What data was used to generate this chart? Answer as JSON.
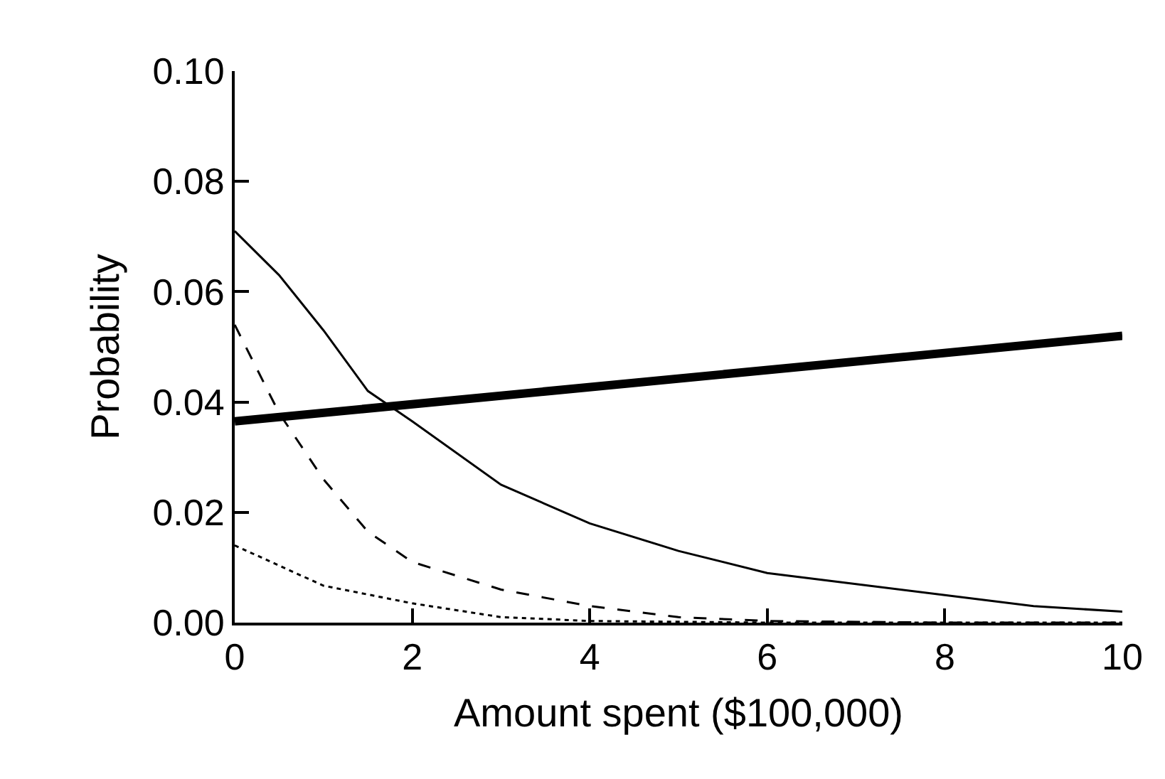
{
  "chart_data": {
    "type": "line",
    "xlabel": "Amount spent ($100,000)",
    "ylabel": "Probability",
    "xlim": [
      0,
      10
    ],
    "xticks": [
      0,
      2,
      4,
      6,
      8,
      10
    ],
    "ylim": [
      0,
      0.1
    ],
    "yticks": [
      {
        "value": 0,
        "label": "0.00"
      },
      {
        "value": 0.02,
        "label": "0.02"
      },
      {
        "value": 0.04,
        "label": "0.04"
      },
      {
        "value": 0.06,
        "label": "0.06"
      },
      {
        "value": 0.08,
        "label": "0.08"
      },
      {
        "value": 0.1,
        "label": "0.10"
      }
    ],
    "legend": false,
    "marker": "none",
    "series": [
      {
        "color": "#000000",
        "line_style": "solid",
        "x": [
          0,
          10
        ],
        "values": [
          0.0365,
          0.052
        ]
      },
      {
        "color": "#000000",
        "line_style": "solid",
        "x": [
          0,
          0.5,
          1,
          1.5,
          2,
          3,
          4,
          5,
          6,
          7,
          8,
          9,
          10
        ],
        "values": [
          0.071,
          0.063,
          0.053,
          0.042,
          0.0365,
          0.025,
          0.018,
          0.013,
          0.009,
          0.007,
          0.005,
          0.003,
          0.002
        ]
      },
      {
        "color": "#000000",
        "line_style": "dashed",
        "x": [
          0,
          0.5,
          1,
          1.5,
          2,
          3,
          4,
          5,
          6,
          8,
          10
        ],
        "values": [
          0.054,
          0.038,
          0.026,
          0.0165,
          0.011,
          0.006,
          0.003,
          0.001,
          0.0003,
          0,
          0
        ]
      },
      {
        "color": "#000000",
        "line_style": "dotted",
        "x": [
          0,
          1,
          2,
          3,
          4,
          6,
          8,
          10
        ],
        "values": [
          0.014,
          0.0067,
          0.0035,
          0.001,
          0.0003,
          0,
          0,
          0
        ]
      }
    ]
  }
}
